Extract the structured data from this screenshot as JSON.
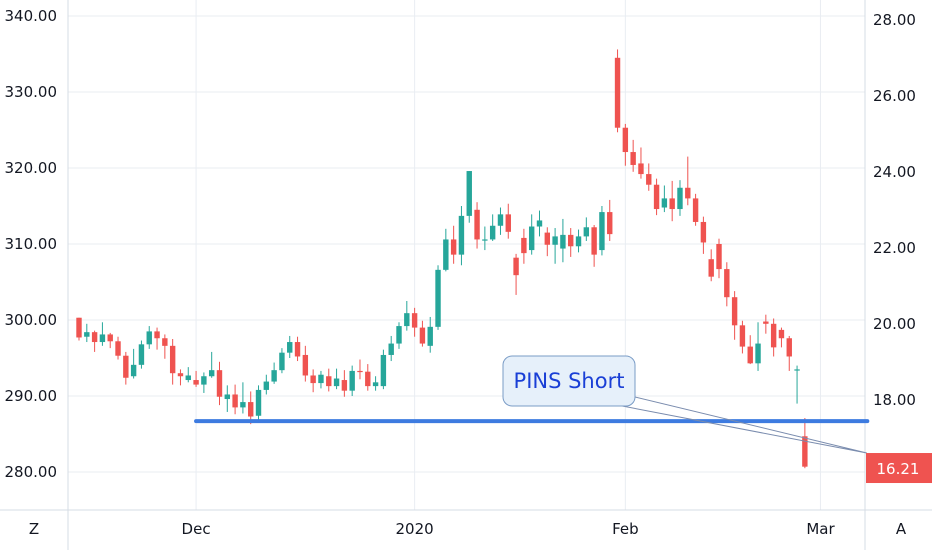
{
  "chart_data": {
    "type": "candlestick",
    "title": "",
    "left_axis": {
      "range": [
        276,
        342
      ],
      "ticks": [
        280,
        290,
        300,
        310,
        320,
        330,
        340
      ],
      "labels": [
        "280.00",
        "290.00",
        "300.00",
        "310.00",
        "320.00",
        "330.00",
        "340.00"
      ]
    },
    "right_axis": {
      "range": [
        15.6,
        28.3
      ],
      "ticks": [
        18,
        20,
        22,
        24,
        26,
        28
      ],
      "labels": [
        "18.00",
        "20.00",
        "22.00",
        "24.00",
        "26.00",
        "28.00"
      ]
    },
    "right_price_badge": {
      "value": 16.21,
      "label": "16.21",
      "color": "#ef5350"
    },
    "x_axis": {
      "labels": [
        "Dec",
        "2020",
        "Feb",
        "Mar"
      ],
      "label_bar_index": [
        15,
        43,
        70,
        95
      ]
    },
    "colors": {
      "up": "#26a69a",
      "down": "#ef5350",
      "grid": "#e9edf2",
      "annotation": "#3d7be0"
    },
    "grid": true,
    "support_line": {
      "value": 286.7,
      "from_bar": 15,
      "to_bar": 101
    },
    "annotation": {
      "text": "PINS Short",
      "target_bar": 101,
      "target_value": 282.5
    },
    "candles": [
      [
        300.3,
        297.7,
        300.3,
        297.3
      ],
      [
        297.8,
        298.4,
        299.5,
        297.1
      ],
      [
        298.4,
        297.1,
        298.6,
        295.8
      ],
      [
        297.1,
        298.1,
        299.7,
        296.6
      ],
      [
        298.1,
        297.2,
        298.3,
        296.3
      ],
      [
        297.2,
        295.3,
        297.8,
        294.8
      ],
      [
        295.3,
        292.4,
        295.8,
        291.5
      ],
      [
        292.6,
        294.1,
        296.2,
        292.3
      ],
      [
        294.1,
        296.8,
        297.3,
        293.6
      ],
      [
        296.8,
        298.5,
        299.2,
        296.2
      ],
      [
        298.5,
        297.6,
        299.0,
        296.1
      ],
      [
        297.6,
        296.6,
        298.1,
        294.9
      ],
      [
        296.6,
        293.0,
        297.5,
        291.5
      ],
      [
        293.0,
        292.6,
        293.5,
        291.4
      ],
      [
        292.1,
        292.7,
        293.8,
        291.8
      ],
      [
        292.1,
        291.5,
        293.3,
        291.2
      ],
      [
        291.5,
        292.6,
        293.1,
        290.4
      ],
      [
        292.6,
        293.4,
        295.8,
        292.4
      ],
      [
        293.4,
        289.9,
        294.5,
        288.8
      ],
      [
        289.6,
        290.2,
        291.4,
        287.9
      ],
      [
        290.2,
        288.5,
        291.5,
        287.6
      ],
      [
        288.5,
        289.2,
        291.8,
        287.7
      ],
      [
        289.2,
        287.3,
        290.6,
        286.3
      ],
      [
        287.4,
        290.8,
        291.4,
        286.5
      ],
      [
        290.8,
        291.9,
        292.8,
        290.2
      ],
      [
        291.9,
        293.4,
        294.4,
        291.6
      ],
      [
        293.4,
        295.7,
        296.3,
        293.0
      ],
      [
        295.7,
        297.1,
        297.9,
        295.0
      ],
      [
        297.1,
        295.2,
        297.8,
        294.6
      ],
      [
        295.4,
        292.7,
        296.6,
        291.9
      ],
      [
        292.7,
        291.7,
        293.5,
        290.5
      ],
      [
        291.7,
        292.8,
        293.3,
        291.0
      ],
      [
        292.6,
        291.3,
        293.6,
        290.6
      ],
      [
        291.3,
        292.3,
        293.6,
        290.9
      ],
      [
        292.1,
        290.7,
        293.4,
        289.9
      ],
      [
        290.7,
        293.3,
        294.0,
        290.0
      ],
      [
        293.3,
        293.2,
        294.8,
        292.2
      ],
      [
        293.2,
        291.3,
        294.2,
        290.7
      ],
      [
        291.3,
        291.8,
        292.6,
        290.7
      ],
      [
        291.3,
        295.4,
        296.1,
        290.9
      ],
      [
        295.4,
        296.9,
        297.9,
        294.6
      ],
      [
        296.9,
        299.2,
        299.7,
        296.2
      ],
      [
        299.2,
        300.9,
        302.5,
        298.6
      ],
      [
        300.9,
        299.0,
        301.6,
        297.8
      ],
      [
        299.0,
        296.9,
        299.9,
        296.5
      ],
      [
        296.6,
        299.1,
        300.4,
        295.7
      ],
      [
        299.1,
        306.6,
        307.2,
        298.7
      ],
      [
        306.6,
        310.6,
        312.0,
        306.4
      ],
      [
        310.6,
        308.6,
        312.4,
        307.4
      ],
      [
        308.6,
        313.7,
        315.0,
        307.2
      ],
      [
        313.7,
        319.6,
        319.6,
        312.8
      ],
      [
        314.5,
        310.6,
        315.5,
        309.4
      ],
      [
        310.6,
        310.6,
        312.3,
        309.2
      ],
      [
        310.6,
        312.4,
        313.9,
        310.4
      ],
      [
        312.4,
        313.9,
        314.8,
        311.2
      ],
      [
        313.9,
        311.6,
        315.3,
        310.7
      ],
      [
        308.2,
        305.9,
        308.7,
        303.3
      ],
      [
        310.8,
        308.8,
        312.0,
        307.4
      ],
      [
        309.2,
        312.3,
        313.9,
        308.6
      ],
      [
        312.3,
        313.1,
        314.4,
        311.0
      ],
      [
        311.5,
        309.9,
        312.2,
        308.4
      ],
      [
        309.9,
        311.0,
        312.1,
        307.4
      ],
      [
        309.4,
        311.2,
        313.3,
        307.6
      ],
      [
        311.2,
        309.7,
        312.1,
        308.3
      ],
      [
        309.7,
        311.0,
        311.9,
        308.9
      ],
      [
        311.0,
        312.2,
        313.5,
        310.4
      ],
      [
        312.2,
        308.6,
        312.5,
        307.0
      ],
      [
        309.2,
        314.2,
        315.0,
        308.5
      ],
      [
        314.2,
        311.3,
        315.8,
        310.4
      ],
      [
        334.5,
        325.3,
        335.6,
        324.7
      ],
      [
        325.3,
        322.1,
        325.8,
        320.3
      ],
      [
        322.1,
        320.4,
        323.7,
        319.5
      ],
      [
        320.6,
        319.2,
        322.7,
        318.6
      ],
      [
        319.2,
        317.8,
        320.6,
        317.0
      ],
      [
        317.8,
        314.6,
        318.6,
        313.8
      ],
      [
        314.8,
        316.0,
        317.7,
        314.2
      ],
      [
        316.0,
        314.6,
        318.3,
        313.0
      ],
      [
        314.6,
        317.4,
        318.4,
        313.7
      ],
      [
        317.4,
        316.0,
        321.5,
        315.1
      ],
      [
        316.0,
        312.9,
        316.6,
        312.4
      ],
      [
        312.9,
        310.2,
        313.6,
        308.7
      ],
      [
        308.0,
        305.7,
        309.3,
        305.1
      ],
      [
        310.0,
        306.7,
        310.7,
        305.5
      ],
      [
        306.7,
        303.0,
        307.6,
        301.8
      ],
      [
        303.0,
        299.3,
        303.8,
        297.4
      ],
      [
        299.3,
        296.5,
        299.9,
        295.6
      ],
      [
        296.5,
        294.3,
        298.0,
        294.2
      ],
      [
        294.3,
        296.9,
        299.7,
        293.3
      ],
      [
        299.8,
        299.5,
        300.7,
        298.2
      ],
      [
        299.5,
        296.4,
        300.2,
        295.2
      ],
      [
        298.7,
        297.6,
        299.0,
        296.4
      ],
      [
        297.6,
        295.2,
        297.9,
        293.3
      ],
      [
        293.4,
        293.5,
        294.0,
        289.0
      ],
      [
        284.7,
        280.7,
        287.1,
        280.5
      ]
    ]
  },
  "corner_left_label": "Z",
  "corner_right_label": "A"
}
